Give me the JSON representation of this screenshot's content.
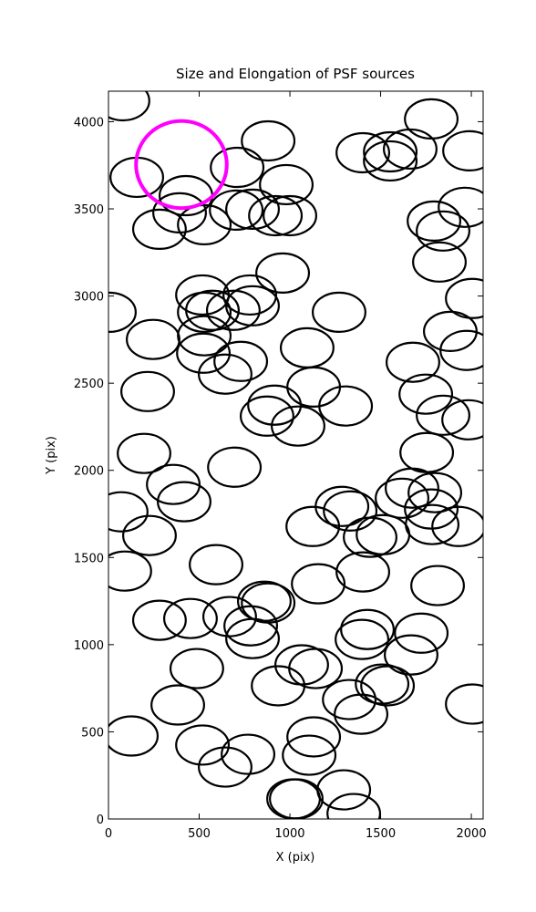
{
  "chart_data": {
    "type": "scatter",
    "title": "Size and Elongation of PSF sources",
    "x_label": "X (pix)",
    "y_label": "Y (pix)",
    "xlim": [
      0,
      2065
    ],
    "ylim": [
      0,
      4175
    ],
    "xticks": [
      0,
      500,
      1000,
      1500,
      2000
    ],
    "yticks": [
      0,
      500,
      1000,
      1500,
      2000,
      2500,
      3000,
      3500,
      4000
    ],
    "series": [
      {
        "color": "#000000",
        "width": 290,
        "height": 225,
        "x": [
          80,
          156,
          427,
          392,
          281,
          528,
          709,
          880,
          980,
          704,
          794,
          920,
          1000,
          1779,
          1402,
          1553,
          1553,
          1663,
          1990,
          1965,
          1794,
          1844,
          1824,
          2005,
          1884,
          1975,
          1678,
          1749,
          1844,
          1985,
          1754,
          960,
          518,
          528,
          688,
          779,
          794,
          573,
          5,
          246,
          528,
          523,
          729,
          643,
          1095,
          1271,
          1131,
          216,
          915,
          874,
          1045,
          1307,
          196,
          694,
          357,
          417,
          70,
          226,
          90,
          593,
          1126,
          1287,
          1332,
          1442,
          1513,
          1402,
          1618,
          1673,
          1799,
          1779,
          1784,
          1930,
          1814,
          1156,
          859,
          880,
          668,
          281,
          452,
          794,
          784,
          1427,
          1724,
          1397,
          1668,
          487,
          1065,
          1141,
          935,
          1327,
          1538,
          1508,
          1392,
          2005,
          382,
          126,
          518,
          769,
          643,
          1131,
          1106,
          1297,
          1352,
          1020,
          1035
        ],
        "y": [
          4120,
          3681,
          3576,
          3477,
          3383,
          3409,
          3738,
          3890,
          3639,
          3493,
          3498,
          3461,
          3461,
          4016,
          3822,
          3827,
          3775,
          3843,
          3833,
          3509,
          3430,
          3373,
          3195,
          2986,
          2797,
          2688,
          2620,
          2437,
          2316,
          2290,
          2102,
          3132,
          3006,
          2907,
          2918,
          3006,
          2944,
          2918,
          2907,
          2751,
          2772,
          2672,
          2625,
          2552,
          2703,
          2907,
          2478,
          2452,
          2374,
          2311,
          2254,
          2369,
          2097,
          2018,
          1919,
          1820,
          1762,
          1626,
          1422,
          1459,
          1678,
          1793,
          1767,
          1616,
          1631,
          1417,
          1840,
          1898,
          1872,
          1778,
          1689,
          1678,
          1339,
          1349,
          1249,
          1239,
          1161,
          1140,
          1150,
          1035,
          1108,
          1087,
          1066,
          1030,
          941,
          863,
          884,
          863,
          764,
          685,
          764,
          774,
          601,
          659,
          654,
          476,
          424,
          371,
          298,
          471,
          366,
          167,
          31,
          115,
          115
        ]
      },
      {
        "color": "#ff00ff",
        "width": 500,
        "height": 500,
        "x": [
          402
        ],
        "y": [
          3754
        ]
      }
    ]
  }
}
